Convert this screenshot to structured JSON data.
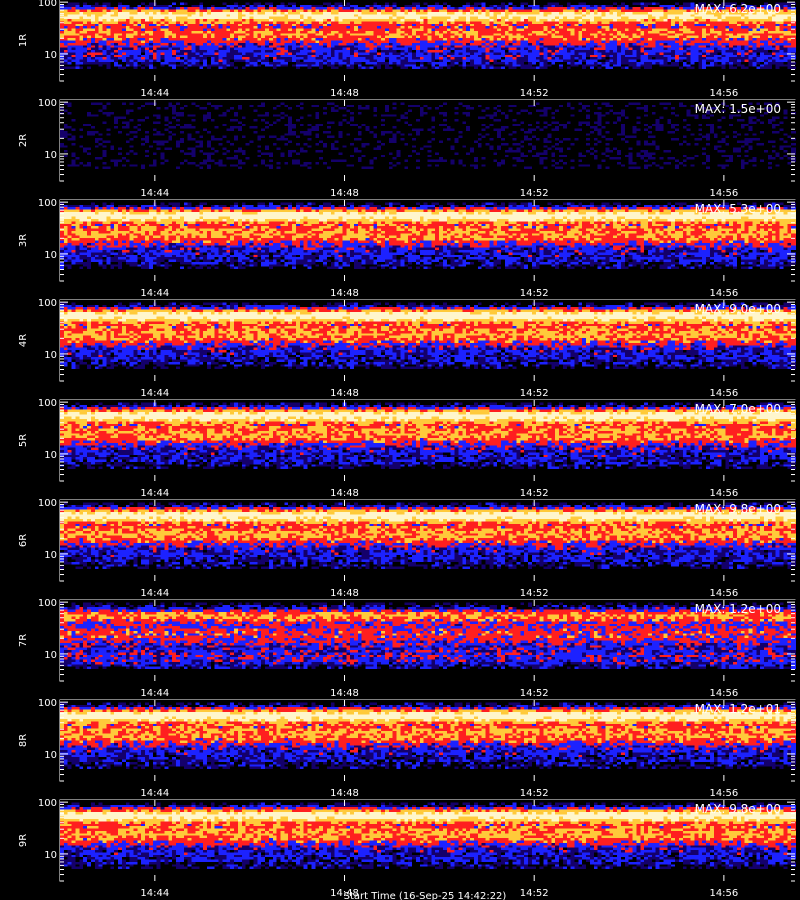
{
  "chart_data": [
    {
      "type": "heatmap",
      "panel_label": "1R",
      "max_label": "MAX: 6.2e+00",
      "x_tick_labels": [
        "14:44",
        "14:48",
        "14:52",
        "14:56"
      ],
      "x_tick_values_min": [
        2,
        6,
        10,
        14
      ],
      "xlim_min": [
        0,
        15.5
      ],
      "y_tick_labels": [
        "100",
        "10"
      ],
      "y_tick_values": [
        100,
        10
      ],
      "ylim": [
        3,
        110
      ],
      "y_scale": "log",
      "colormap": [
        "#000000",
        "#180070",
        "#2030ff",
        "#ff2020",
        "#ffd24a",
        "#fff7c7"
      ]
    },
    {
      "type": "heatmap",
      "panel_label": "2R",
      "max_label": "MAX: 1.5e+00",
      "x_tick_labels": [
        "14:44",
        "14:48",
        "14:52",
        "14:56"
      ],
      "x_tick_values_min": [
        2,
        6,
        10,
        14
      ],
      "xlim_min": [
        0,
        15.5
      ],
      "y_tick_labels": [
        "100",
        "10"
      ],
      "y_tick_values": [
        100,
        10
      ],
      "ylim": [
        3,
        110
      ],
      "y_scale": "log",
      "colormap": [
        "#000000"
      ]
    },
    {
      "type": "heatmap",
      "panel_label": "3R",
      "max_label": "MAX: 5.3e+00",
      "x_tick_labels": [
        "14:44",
        "14:48",
        "14:52",
        "14:56"
      ],
      "x_tick_values_min": [
        2,
        6,
        10,
        14
      ],
      "xlim_min": [
        0,
        15.5
      ],
      "y_tick_labels": [
        "100",
        "10"
      ],
      "y_tick_values": [
        100,
        10
      ],
      "ylim": [
        3,
        110
      ],
      "y_scale": "log",
      "colormap": [
        "#000000",
        "#180070",
        "#2030ff",
        "#ff2020",
        "#ffd24a",
        "#fff7c7"
      ]
    },
    {
      "type": "heatmap",
      "panel_label": "4R",
      "max_label": "MAX: 9.0e+00",
      "x_tick_labels": [
        "14:44",
        "14:48",
        "14:52",
        "14:56"
      ],
      "x_tick_values_min": [
        2,
        6,
        10,
        14
      ],
      "xlim_min": [
        0,
        15.5
      ],
      "y_tick_labels": [
        "100",
        "10"
      ],
      "y_tick_values": [
        100,
        10
      ],
      "ylim": [
        3,
        110
      ],
      "y_scale": "log",
      "colormap": [
        "#000000",
        "#180070",
        "#2030ff",
        "#ff2020",
        "#ffd24a",
        "#fff7c7"
      ]
    },
    {
      "type": "heatmap",
      "panel_label": "5R",
      "max_label": "MAX: 7.0e+00",
      "x_tick_labels": [
        "14:44",
        "14:48",
        "14:52",
        "14:56"
      ],
      "x_tick_values_min": [
        2,
        6,
        10,
        14
      ],
      "xlim_min": [
        0,
        15.5
      ],
      "y_tick_labels": [
        "100",
        "10"
      ],
      "y_tick_values": [
        100,
        10
      ],
      "ylim": [
        3,
        110
      ],
      "y_scale": "log",
      "colormap": [
        "#000000",
        "#180070",
        "#2030ff",
        "#ff2020",
        "#ffd24a",
        "#fff7c7"
      ]
    },
    {
      "type": "heatmap",
      "panel_label": "6R",
      "max_label": "MAX: 9.8e+00",
      "x_tick_labels": [
        "14:44",
        "14:48",
        "14:52",
        "14:56"
      ],
      "x_tick_values_min": [
        2,
        6,
        10,
        14
      ],
      "xlim_min": [
        0,
        15.5
      ],
      "y_tick_labels": [
        "100",
        "10"
      ],
      "y_tick_values": [
        100,
        10
      ],
      "ylim": [
        3,
        110
      ],
      "y_scale": "log",
      "colormap": [
        "#000000",
        "#180070",
        "#2030ff",
        "#ff2020",
        "#ffd24a",
        "#fff7c7"
      ]
    },
    {
      "type": "heatmap",
      "panel_label": "7R",
      "max_label": "MAX: 1.2e+00",
      "x_tick_labels": [
        "14:44",
        "14:48",
        "14:52",
        "14:56"
      ],
      "x_tick_values_min": [
        2,
        6,
        10,
        14
      ],
      "xlim_min": [
        0,
        15.5
      ],
      "y_tick_labels": [
        "100",
        "10"
      ],
      "y_tick_values": [
        100,
        10
      ],
      "ylim": [
        3,
        110
      ],
      "y_scale": "log",
      "colormap": [
        "#000000",
        "#180070",
        "#2030ff",
        "#ff2020",
        "#ffd24a",
        "#fff7c7"
      ]
    },
    {
      "type": "heatmap",
      "panel_label": "8R",
      "max_label": "MAX: 1.2e+01",
      "x_tick_labels": [
        "14:44",
        "14:48",
        "14:52",
        "14:56"
      ],
      "x_tick_values_min": [
        2,
        6,
        10,
        14
      ],
      "xlim_min": [
        0,
        15.5
      ],
      "y_tick_labels": [
        "100",
        "10"
      ],
      "y_tick_values": [
        100,
        10
      ],
      "ylim": [
        3,
        110
      ],
      "y_scale": "log",
      "colormap": [
        "#000000",
        "#180070",
        "#2030ff",
        "#ff2020",
        "#ffd24a",
        "#fff7c7"
      ]
    },
    {
      "type": "heatmap",
      "panel_label": "9R",
      "max_label": "MAX: 9.8e+00",
      "x_tick_labels": [
        "14:44",
        "14:48",
        "14:52",
        "14:56"
      ],
      "x_tick_values_min": [
        2,
        6,
        10,
        14
      ],
      "xlim_min": [
        0,
        15.5
      ],
      "y_tick_labels": [
        "100",
        "10"
      ],
      "y_tick_values": [
        100,
        10
      ],
      "ylim": [
        3,
        110
      ],
      "y_scale": "log",
      "colormap": [
        "#000000",
        "#180070",
        "#2030ff",
        "#ff2020",
        "#ffd24a",
        "#fff7c7"
      ]
    }
  ],
  "footer_text": "Start Time (16-Sep-25 14:42:22)"
}
